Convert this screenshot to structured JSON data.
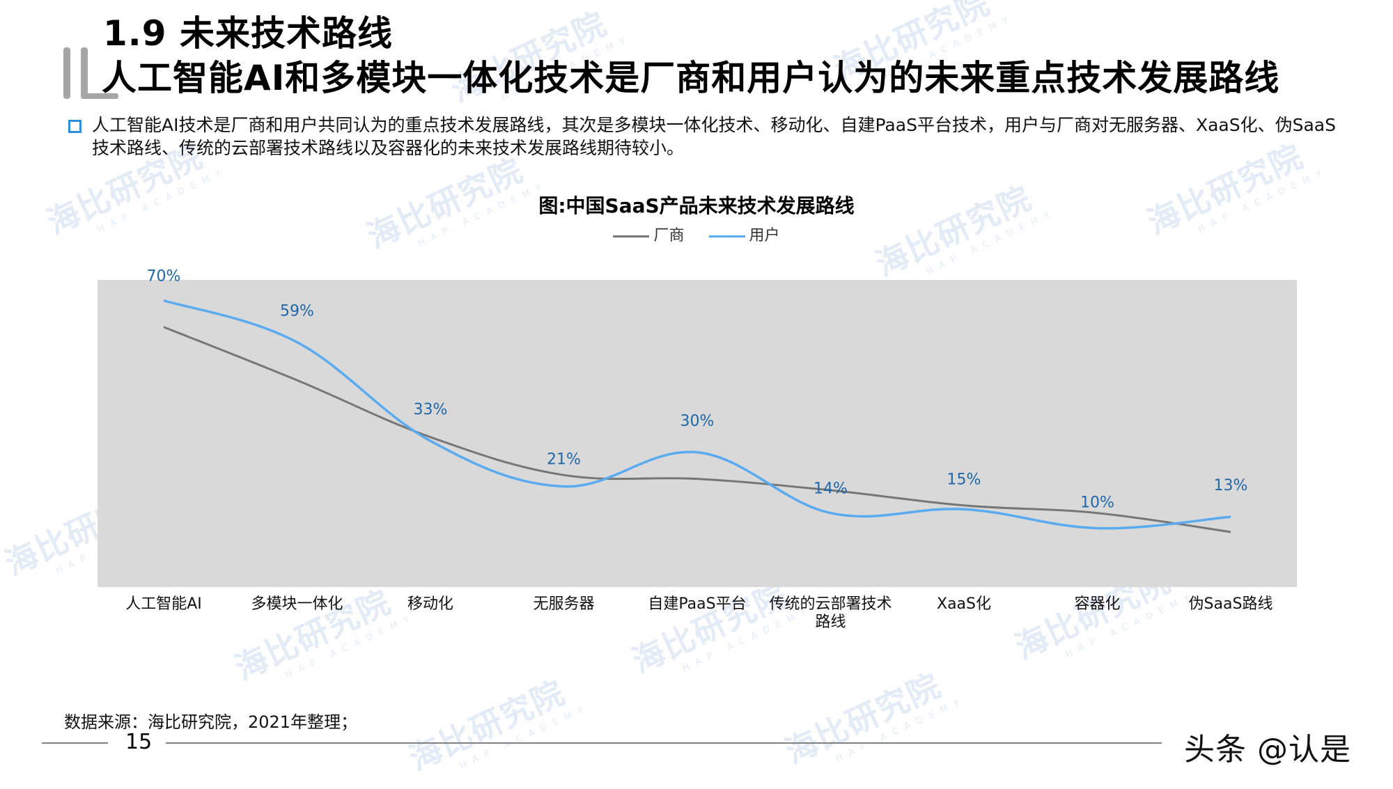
{
  "header": {
    "section_title": "1.9 未来技术路线",
    "headline": "人工智能AI和多模块一体化技术是厂商和用户认为的未来重点技术发展路线"
  },
  "bullet": {
    "text": "人工智能AI技术是厂商和用户共同认为的重点技术发展路线，其次是多模块一体化技术、移动化、自建PaaS平台技术，用户与厂商对无服务器、XaaS化、伪SaaS技术路线、传统的云部署技术路线以及容器化的未来技术发展路线期待较小。"
  },
  "watermark": {
    "text": "海比研究院",
    "subtext": "HAP ACADEMY"
  },
  "colors": {
    "vendor": "#767676",
    "user": "#5aaaf0",
    "label": "#1f67a8",
    "plot_bg": "#d9d9d9",
    "bullet": "#2f8fd8"
  },
  "chart_data": {
    "type": "line",
    "title": "图:中国SaaS产品未来技术发展路线",
    "xlabel": "",
    "ylabel": "",
    "ylim": [
      0,
      80
    ],
    "grid": false,
    "legend_position": "top",
    "smooth": true,
    "categories": [
      "人工智能AI",
      "多模块一体化",
      "移动化",
      "无服务器",
      "自建PaaS平台",
      "传统的云部署技术路线",
      "XaaS化",
      "容器化",
      "伪SaaS路线"
    ],
    "series": [
      {
        "name": "厂商",
        "values": [
          63,
          49,
          34,
          24,
          23,
          20,
          16,
          14,
          9
        ],
        "data_labels": false
      },
      {
        "name": "用户",
        "values": [
          70,
          59,
          33,
          21,
          30,
          14,
          15,
          10,
          13
        ],
        "data_labels": true
      }
    ],
    "value_labels": [
      "70%",
      "59%",
      "33%",
      "21%",
      "30%",
      "14%",
      "15%",
      "10%",
      "13%"
    ]
  },
  "legend": {
    "vendor_label": "厂商",
    "user_label": "用户"
  },
  "footer": {
    "source": "数据来源：海比研究院，2021年整理；",
    "page_number": "15",
    "brand_overlay": "头条 @认是"
  }
}
